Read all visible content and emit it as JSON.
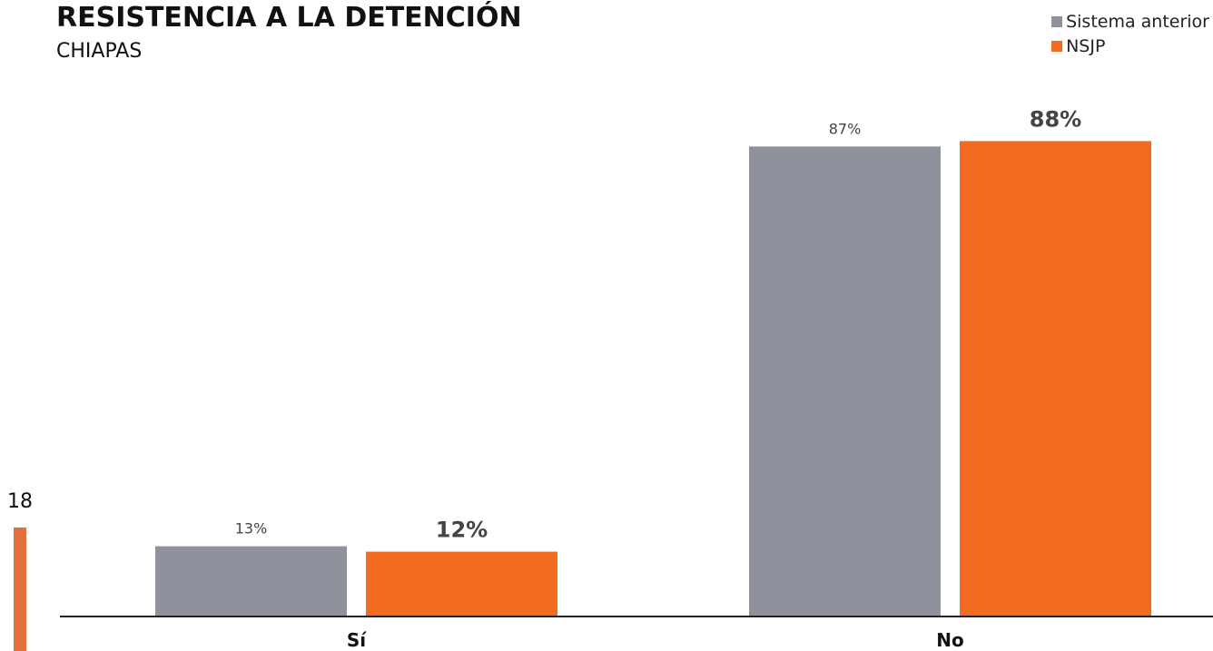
{
  "page": {
    "number": "18"
  },
  "chart_data": {
    "type": "bar",
    "title": "RESISTENCIA A LA DETENCIÓN",
    "subtitle": "CHIAPAS",
    "categories": [
      "Sí",
      "No"
    ],
    "series": [
      {
        "name": "Sistema anterior",
        "values": [
          13,
          87
        ],
        "labels": [
          "13%",
          "87%"
        ],
        "color": "#8f929d"
      },
      {
        "name": "NSJP",
        "values": [
          12,
          88
        ],
        "labels": [
          "12%",
          "88%"
        ],
        "color": "#f26b21"
      }
    ],
    "ylim": [
      0,
      100
    ],
    "grid": false,
    "legend_position": "top-right",
    "xlabel": "",
    "ylabel": ""
  }
}
